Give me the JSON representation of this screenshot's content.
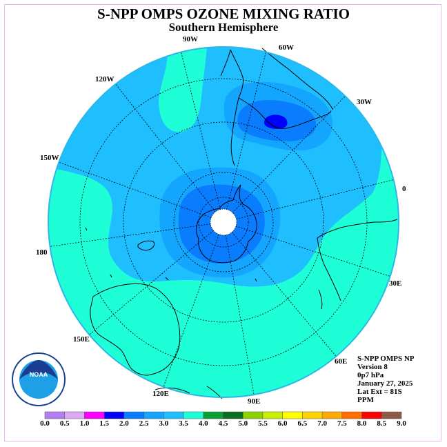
{
  "title": "S-NPP OMPS OZONE MIXING RATIO",
  "subtitle": "Southern Hemisphere",
  "longitude_labels": {
    "lon_90w": "90W",
    "lon_60w": "60W",
    "lon_30w": "30W",
    "lon_0": "0",
    "lon_30e": "30E",
    "lon_60e": "60E",
    "lon_90e": "90E",
    "lon_120e": "120E",
    "lon_150e": "150E",
    "lon_180": "180",
    "lon_150w": "150W",
    "lon_120w": "120W"
  },
  "info": {
    "product": "S-NPP OMPS NP",
    "version": "Version 8",
    "level": "0p7 hPa",
    "date": "January 27, 2025",
    "lat_ext": "Lat Ext = 81S",
    "units": "PPM"
  },
  "logo": {
    "text": "NOAA",
    "ring_text": "NATIONAL OCEANIC AND ATMOSPHERIC ADMINISTRATION · U.S. DEPARTMENT OF COMMERCE"
  },
  "colorbar": {
    "ticks": [
      "0.0",
      "0.5",
      "1.0",
      "1.5",
      "2.0",
      "2.5",
      "3.0",
      "3.5",
      "4.0",
      "4.5",
      "5.0",
      "5.5",
      "6.0",
      "6.5",
      "7.0",
      "7.5",
      "8.0",
      "8.5",
      "9.0"
    ],
    "colors": [
      "#b37ff0",
      "#dcaaf5",
      "#ff00ff",
      "#0000ff",
      "#0a7dff",
      "#14a5ff",
      "#1ebeff",
      "#1effd7",
      "#0aa032",
      "#0a6e1e",
      "#8cd200",
      "#c8f000",
      "#ffff00",
      "#ffd200",
      "#ffaa00",
      "#ff6e00",
      "#ff0000",
      "#8c5a46"
    ]
  },
  "map_colors": {
    "level_3_0_3_5": "#1ebeff",
    "level_3_5_4_0": "#1effd7",
    "level_2_5_3_0": "#14a5ff",
    "level_2_0_2_5": "#0a7dff",
    "level_1_5_2_0": "#0000ff",
    "pole_gap": "#ffffff",
    "coast": "#000000"
  }
}
